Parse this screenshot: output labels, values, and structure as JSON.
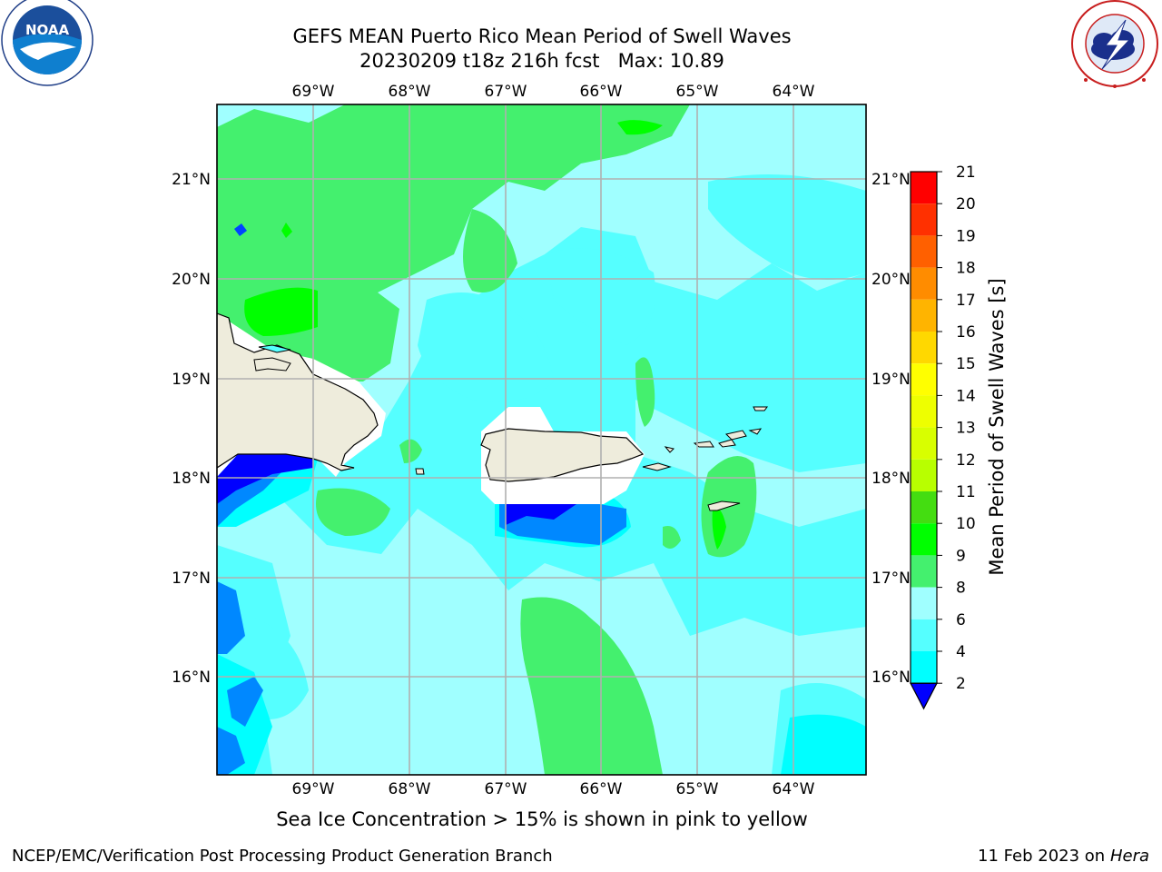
{
  "header": {
    "title_line1": "GEFS MEAN Puerto Rico Mean Period of Swell Waves",
    "title_line2": "20230209 t18z 216h fcst   Max: 10.89"
  },
  "logos": {
    "left": {
      "name": "NOAA",
      "text": "NOAA",
      "ring_text": "NATIONAL OCEANIC AND ATMOSPHERIC ADMINISTRATION · U.S. DEPARTMENT OF COMMERCE"
    },
    "right": {
      "name": "National Weather Service",
      "ring_text": "NATIONAL WEATHER SERVICE"
    }
  },
  "map": {
    "lon_ticks": [
      "69°W",
      "68°W",
      "67°W",
      "66°W",
      "65°W",
      "64°W"
    ],
    "lat_ticks": [
      "21°N",
      "20°N",
      "19°N",
      "18°N",
      "17°N",
      "16°N"
    ],
    "land_color": "#eeecdc",
    "grid_color": "#b0b0b0"
  },
  "colorbar": {
    "label": "Mean Period of Swell Waves [s]",
    "ticks": [
      "21",
      "20",
      "19",
      "18",
      "17",
      "16",
      "15",
      "14",
      "13",
      "12",
      "11",
      "10",
      "9",
      "8",
      "6",
      "4",
      "2"
    ],
    "colors": [
      "#ff0000",
      "#ff3000",
      "#ff6000",
      "#ff8c00",
      "#ffb400",
      "#ffd800",
      "#ffff00",
      "#eeff00",
      "#d8ff00",
      "#b8ff00",
      "#44dd11",
      "#00ff00",
      "#44f06e",
      "#a0ffff",
      "#55ffff",
      "#00ffff",
      "#0088ff",
      "#0000ff"
    ]
  },
  "ice_note": "Sea Ice Concentration > 15% is shown in pink to yellow",
  "footer": {
    "left": "NCEP/EMC/Verification Post Processing Product Generation Branch",
    "right_date": "11 Feb 2023 on",
    "right_host": "Hera"
  }
}
